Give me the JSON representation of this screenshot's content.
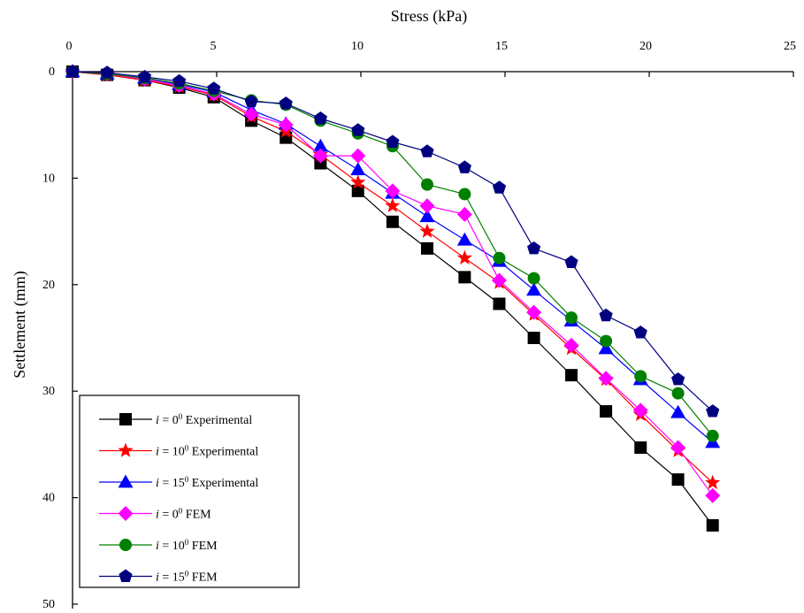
{
  "chart_data": {
    "type": "line",
    "title": "",
    "xlabel": "Stress (kPa)",
    "ylabel": "Settlement (mm)",
    "x_axis_position": "top",
    "y_inverted": true,
    "xlim": [
      0,
      25
    ],
    "ylim": [
      0,
      50
    ],
    "xticks": [
      "0",
      "5",
      "10",
      "15",
      "20",
      "25"
    ],
    "yticks": [
      "0",
      "10",
      "20",
      "30",
      "40",
      "50"
    ],
    "grid": false,
    "legend_position": "bottom-left",
    "series": [
      {
        "name": "i = 0⁰ Experimental",
        "legend": {
          "symbol": "i",
          "eq": " = 0",
          "sup": "0",
          "method": " Experimental"
        },
        "color": "#000000",
        "marker": "square",
        "x": [
          0,
          1.2,
          2.5,
          3.7,
          4.9,
          6.2,
          7.4,
          8.6,
          9.9,
          11.1,
          12.3,
          13.6,
          14.8,
          16.0,
          17.3,
          18.5,
          19.7,
          21.0,
          22.2
        ],
        "y": [
          0,
          0.3,
          0.8,
          1.5,
          2.4,
          4.6,
          6.2,
          8.6,
          11.2,
          14.1,
          16.6,
          19.3,
          21.8,
          25.0,
          28.5,
          31.9,
          35.3,
          38.3,
          42.6
        ]
      },
      {
        "name": "i = 10⁰ Experimental",
        "legend": {
          "symbol": "i",
          "eq": " = 10",
          "sup": "0",
          "method": " Experimental"
        },
        "color": "#ff0000",
        "marker": "star",
        "x": [
          0,
          1.2,
          2.5,
          3.7,
          4.9,
          6.2,
          7.4,
          8.6,
          9.9,
          11.1,
          12.3,
          13.6,
          14.8,
          16.0,
          17.3,
          18.5,
          19.7,
          21.0,
          22.2
        ],
        "y": [
          0,
          0.3,
          0.8,
          1.4,
          2.2,
          4.2,
          5.6,
          7.8,
          10.4,
          12.6,
          15.0,
          17.5,
          19.8,
          22.8,
          26.0,
          28.9,
          32.2,
          35.6,
          38.6
        ]
      },
      {
        "name": "i = 15⁰ Experimental",
        "legend": {
          "symbol": "i",
          "eq": " = 15",
          "sup": "0",
          "method": " Experimental"
        },
        "color": "#0000ff",
        "marker": "triangle",
        "x": [
          0,
          1.2,
          2.5,
          3.7,
          4.9,
          6.2,
          7.4,
          8.6,
          9.9,
          11.1,
          12.3,
          13.6,
          14.8,
          16.0,
          17.3,
          18.5,
          19.7,
          21.0,
          22.2
        ],
        "y": [
          0,
          0.2,
          0.6,
          1.2,
          1.9,
          3.6,
          4.9,
          7.0,
          9.2,
          11.4,
          13.6,
          15.8,
          17.8,
          20.5,
          23.4,
          26.0,
          28.9,
          32.0,
          34.8
        ]
      },
      {
        "name": "i = 0⁰ FEM",
        "legend": {
          "symbol": "i",
          "eq": " = 0",
          "sup": "0",
          "method": " FEM"
        },
        "color": "#ff00ff",
        "marker": "diamond",
        "x": [
          0,
          1.2,
          2.5,
          3.7,
          4.9,
          6.2,
          7.4,
          8.6,
          9.9,
          11.1,
          12.3,
          13.6,
          14.8,
          16.0,
          17.3,
          18.5,
          19.7,
          21.0,
          22.2
        ],
        "y": [
          0,
          0.2,
          0.7,
          1.3,
          2.1,
          4.0,
          5.0,
          7.9,
          7.9,
          11.2,
          12.6,
          13.4,
          19.6,
          22.6,
          25.7,
          28.8,
          31.8,
          35.3,
          39.8
        ]
      },
      {
        "name": "i = 10⁰ FEM",
        "legend": {
          "symbol": "i",
          "eq": " = 10",
          "sup": "0",
          "method": " FEM"
        },
        "color": "#008000",
        "marker": "circle",
        "x": [
          0,
          1.2,
          2.5,
          3.7,
          4.9,
          6.2,
          7.4,
          8.6,
          9.9,
          11.1,
          12.3,
          13.6,
          14.8,
          16.0,
          17.3,
          18.5,
          19.7,
          21.0,
          22.2
        ],
        "y": [
          0,
          0.2,
          0.6,
          1.1,
          1.8,
          2.7,
          3.1,
          4.6,
          5.8,
          7.0,
          10.6,
          11.5,
          17.5,
          19.4,
          23.1,
          25.3,
          28.6,
          30.2,
          34.2
        ]
      },
      {
        "name": "i = 15⁰ FEM",
        "legend": {
          "symbol": "i",
          "eq": " = 15",
          "sup": "0",
          "method": " FEM"
        },
        "color": "#000080",
        "marker": "pentagon",
        "x": [
          0,
          1.2,
          2.5,
          3.7,
          4.9,
          6.2,
          7.4,
          8.6,
          9.9,
          11.1,
          12.3,
          13.6,
          14.8,
          16.0,
          17.3,
          18.5,
          19.7,
          21.0,
          22.2
        ],
        "y": [
          0,
          0.1,
          0.5,
          0.9,
          1.6,
          2.8,
          3.0,
          4.4,
          5.5,
          6.6,
          7.5,
          9.0,
          10.9,
          16.6,
          17.9,
          22.9,
          24.5,
          28.9,
          31.9
        ]
      }
    ]
  }
}
